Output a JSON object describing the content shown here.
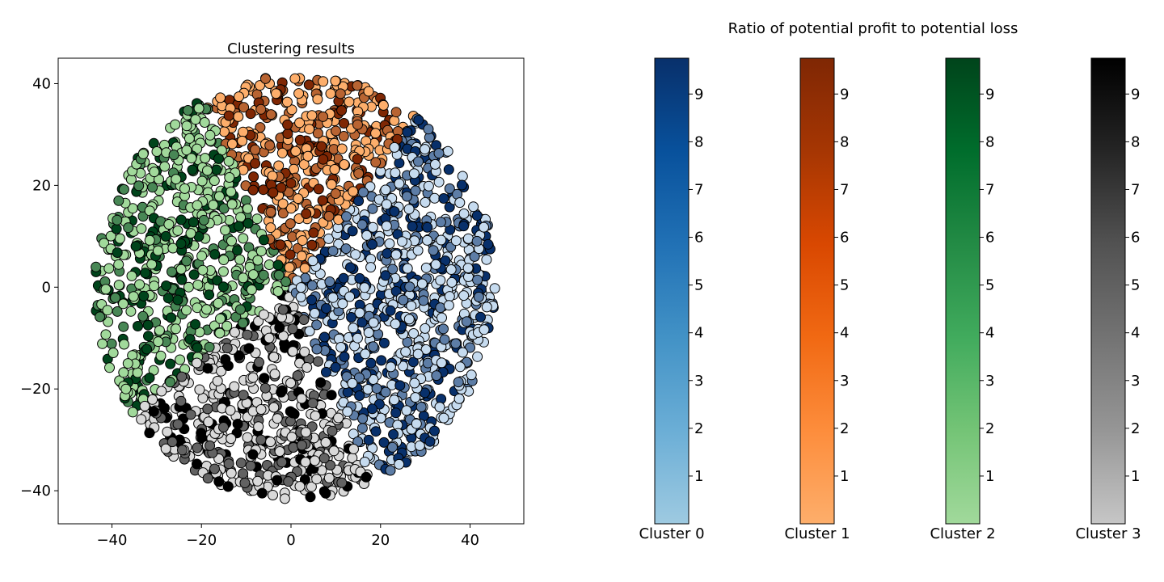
{
  "chart_data": [
    {
      "type": "scatter",
      "title": "Clustering results",
      "xlabel": "",
      "ylabel": "",
      "xlim": [
        -52,
        52
      ],
      "ylim": [
        -46.5,
        45
      ],
      "xticks": [
        -40,
        -20,
        0,
        20,
        40
      ],
      "yticks": [
        -40,
        -20,
        0,
        20,
        40
      ],
      "xtick_labels": [
        "−40",
        "−20",
        "0",
        "20",
        "40"
      ],
      "ytick_labels": [
        "−40",
        "−20",
        "0",
        "20",
        "40"
      ],
      "grid": false,
      "point_shape": "disc of radius ~45 centered near (0,0), split into four angular sectors",
      "series": [
        {
          "name": "Cluster 0",
          "colormap": "Blues",
          "sector_deg": [
            -65,
            50
          ],
          "color_light": "#c6dbef",
          "color_dark": "#08306b"
        },
        {
          "name": "Cluster 1",
          "colormap": "Oranges",
          "sector_deg": [
            50,
            118
          ],
          "color_light": "#fdae6b",
          "color_dark": "#7f2704"
        },
        {
          "name": "Cluster 2",
          "colormap": "Greens",
          "sector_deg": [
            118,
            215
          ],
          "color_light": "#a1d99b",
          "color_dark": "#00441b"
        },
        {
          "name": "Cluster 3",
          "colormap": "Greys",
          "sector_deg": [
            215,
            295
          ],
          "color_light": "#d9d9d9",
          "color_dark": "#000000"
        }
      ]
    },
    {
      "type": "heatmap",
      "title": "Ratio of potential profit to potential loss",
      "range": [
        0,
        9.75
      ],
      "ticks": [
        1,
        2,
        3,
        4,
        5,
        6,
        7,
        8,
        9
      ],
      "colorbars": [
        {
          "label": "Cluster 0",
          "colormap": "Blues",
          "stops": [
            "#9ecae1",
            "#6baed6",
            "#4292c6",
            "#2171b5",
            "#08519c",
            "#08306b"
          ]
        },
        {
          "label": "Cluster 1",
          "colormap": "Oranges",
          "stops": [
            "#fdae6b",
            "#fd8d3c",
            "#f16913",
            "#d94801",
            "#a63603",
            "#7f2704"
          ]
        },
        {
          "label": "Cluster 2",
          "colormap": "Greens",
          "stops": [
            "#a1d99b",
            "#74c476",
            "#41ab5d",
            "#238b45",
            "#006d2c",
            "#00441b"
          ]
        },
        {
          "label": "Cluster 3",
          "colormap": "Greys",
          "stops": [
            "#c6c6c6",
            "#969696",
            "#737373",
            "#525252",
            "#252525",
            "#000000"
          ]
        }
      ]
    }
  ]
}
